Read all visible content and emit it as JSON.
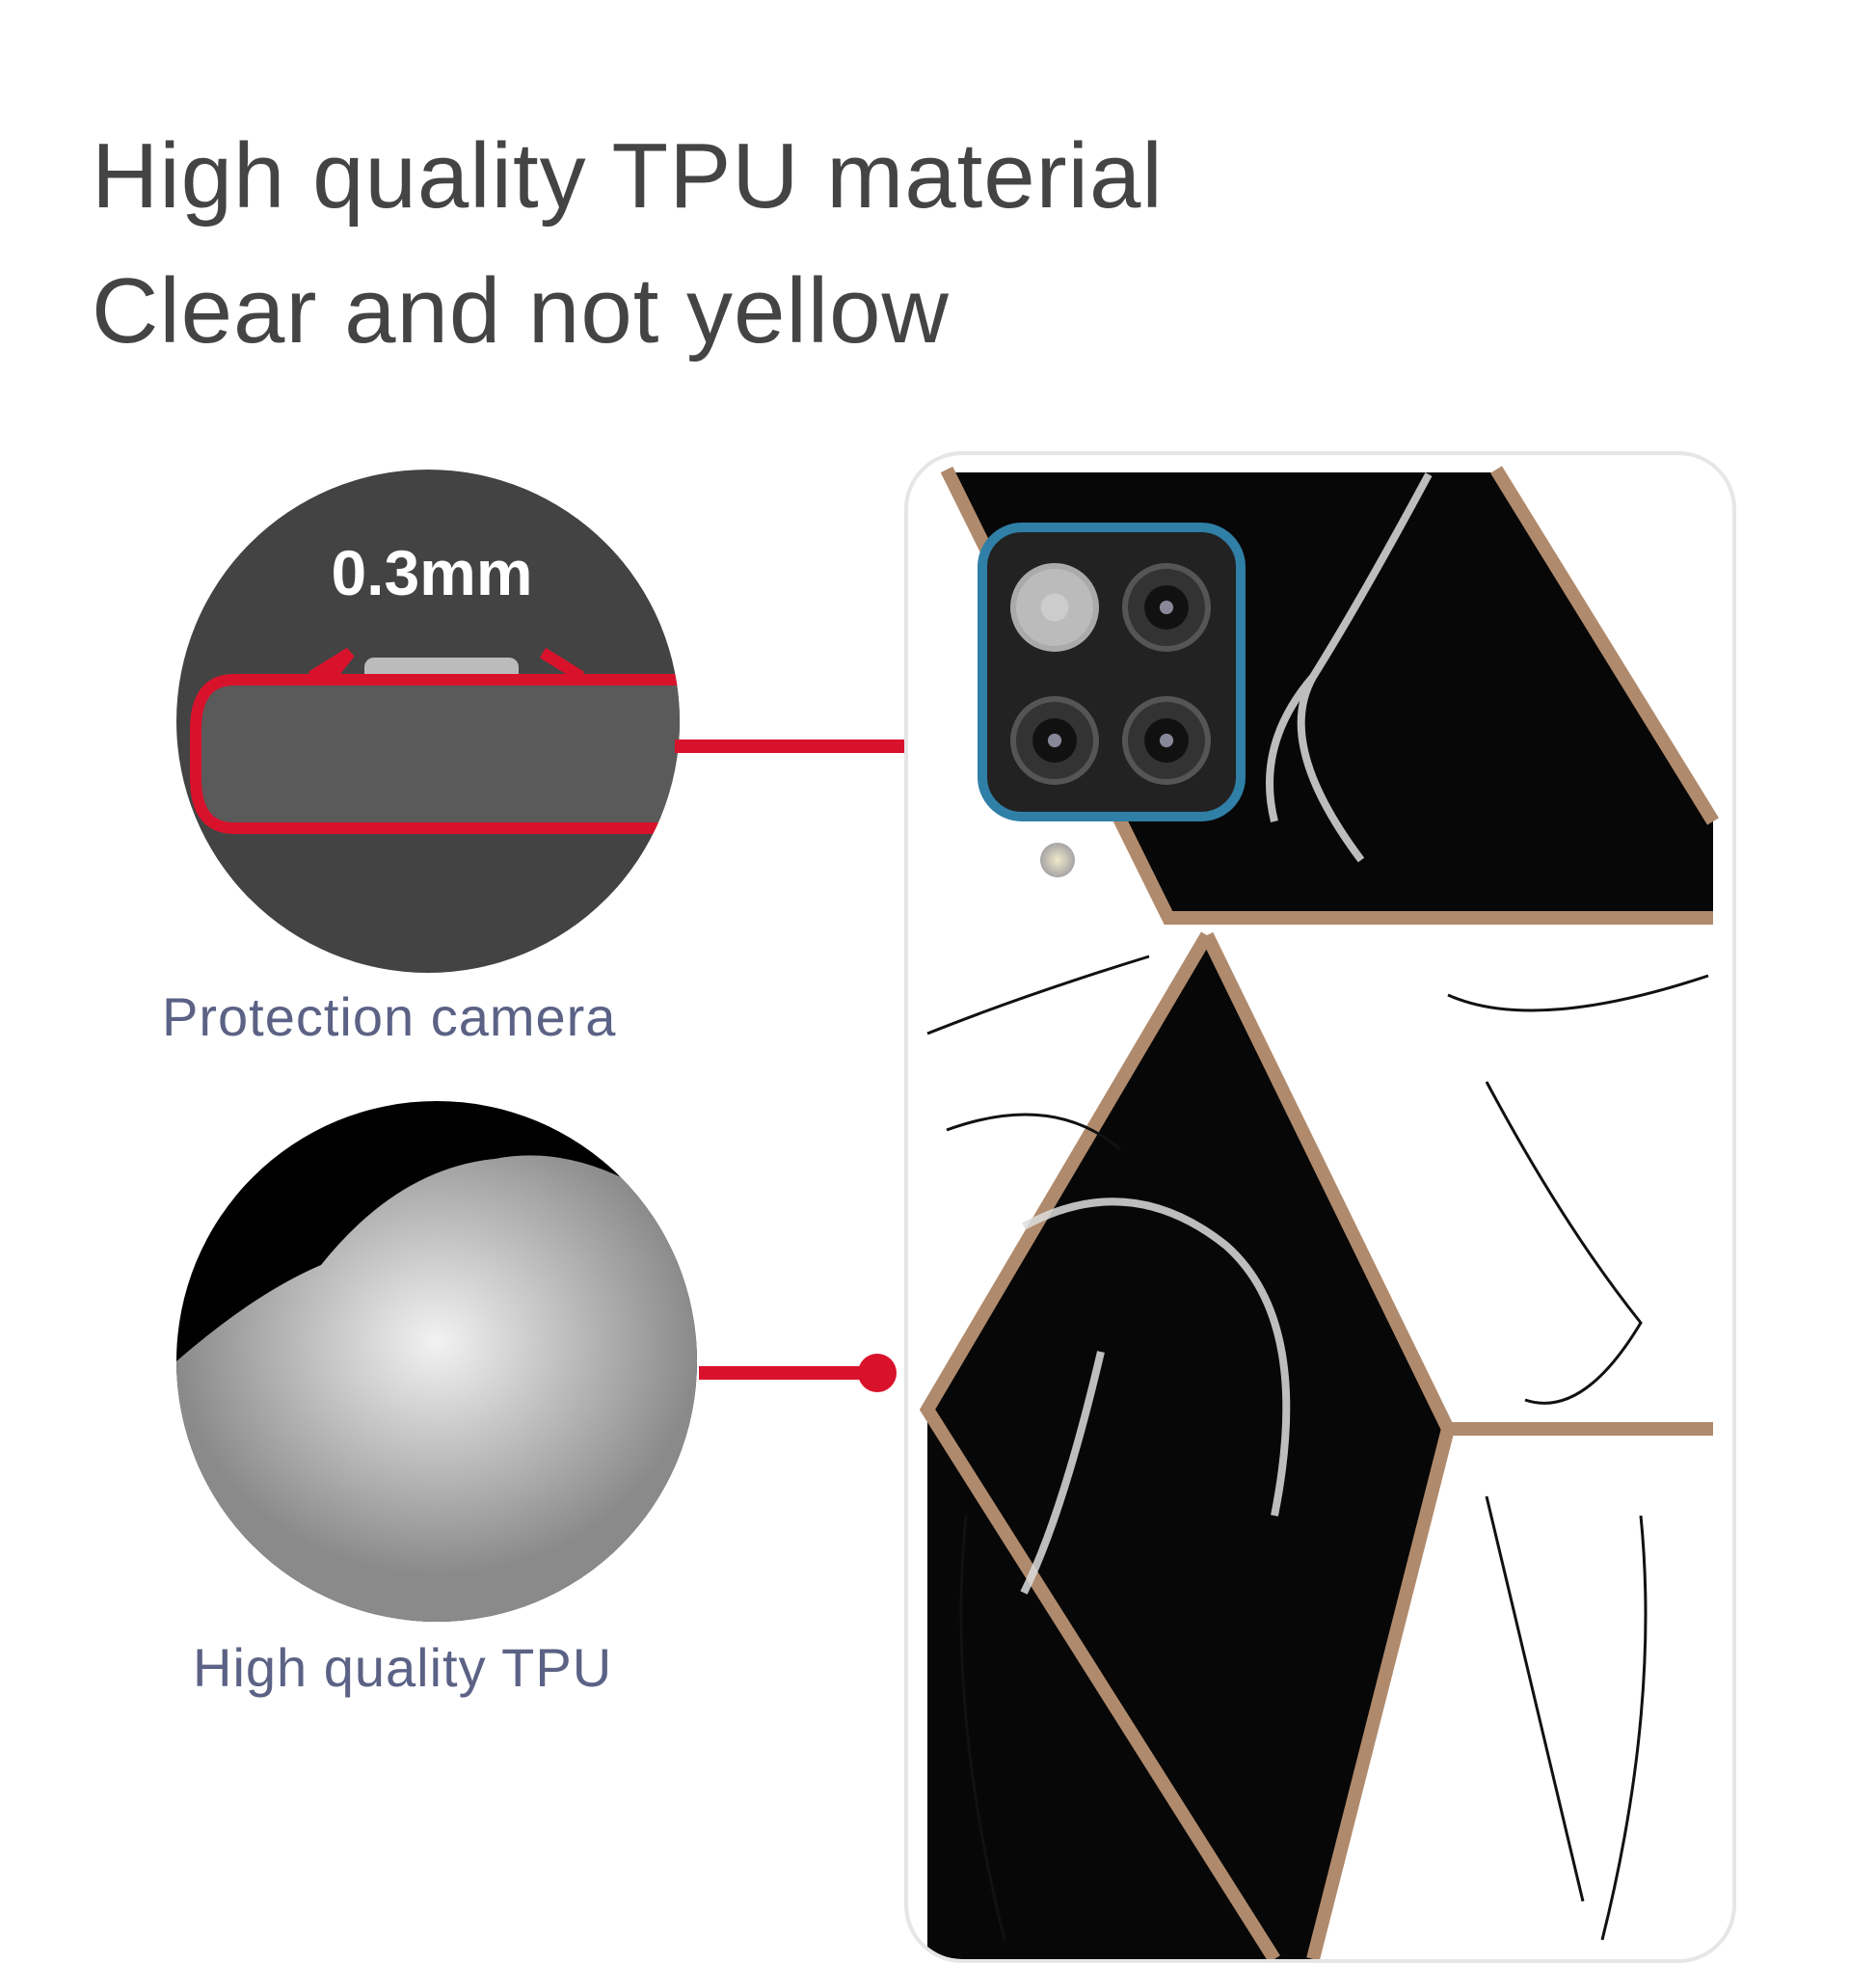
{
  "headline": {
    "line1": "High quality TPU material",
    "line2": "Clear and not yellow"
  },
  "callouts": [
    {
      "measurement": "0.3mm",
      "caption": "Protection camera"
    },
    {
      "caption": "High quality TPU"
    }
  ],
  "colors": {
    "text": "#444444",
    "caption": "#5b6285",
    "connector": "#d9122c",
    "camera_frame": "#2f7fa6",
    "marble_dark": "#050505",
    "gold_trim": "#b08a6c"
  }
}
